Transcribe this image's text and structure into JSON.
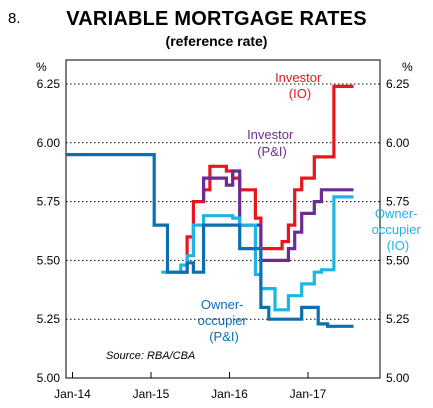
{
  "figure_number": "8.",
  "chart_data": {
    "type": "line",
    "title": "VARIABLE MORTGAGE RATES",
    "subtitle": "(reference rate)",
    "unit_left": "%",
    "unit_right": "%",
    "ylim": [
      5.0,
      6.25
    ],
    "yticks": [
      5.0,
      5.25,
      5.5,
      5.75,
      6.0,
      6.25
    ],
    "ytick_labels": [
      "5.00",
      "5.25",
      "5.50",
      "5.75",
      "6.00",
      "6.25"
    ],
    "xlim": [
      2013.917,
      2017.917
    ],
    "xticks": [
      2014.0,
      2015.0,
      2016.0,
      2017.0
    ],
    "xtick_labels": [
      "Jan-14",
      "Jan-15",
      "Jan-16",
      "Jan-17"
    ],
    "grid": "horizontal dotted",
    "source": "Source: RBA/CBA",
    "series": [
      {
        "name": "Investor (IO)",
        "label_lines": [
          "Investor",
          "(IO)"
        ],
        "color": "#e8141e",
        "x": [
          2015.38,
          2015.46,
          2015.46,
          2015.54,
          2015.54,
          2015.67,
          2015.67,
          2015.75,
          2015.75,
          2015.96,
          2015.96,
          2016.04,
          2016.04,
          2016.13,
          2016.13,
          2016.33,
          2016.33,
          2016.4,
          2016.4,
          2016.58,
          2016.58,
          2016.67,
          2016.67,
          2016.75,
          2016.75,
          2016.83,
          2016.83,
          2016.92,
          2016.92,
          2017.08,
          2017.08,
          2017.17,
          2017.17,
          2017.33,
          2017.33,
          2017.46,
          2017.46,
          2017.58
        ],
        "y": [
          5.45,
          5.45,
          5.6,
          5.6,
          5.75,
          5.75,
          5.8,
          5.8,
          5.9,
          5.9,
          5.88,
          5.88,
          5.85,
          5.85,
          5.8,
          5.8,
          5.68,
          5.68,
          5.55,
          5.55,
          5.55,
          5.55,
          5.58,
          5.58,
          5.65,
          5.65,
          5.8,
          5.8,
          5.85,
          5.85,
          5.94,
          5.94,
          5.94,
          5.94,
          6.24,
          6.24,
          6.24,
          6.24
        ]
      },
      {
        "name": "Investor (P&I)",
        "label_lines": [
          "Investor",
          "(P&I)"
        ],
        "color": "#6b2c91",
        "x": [
          2015.67,
          2015.67,
          2015.96,
          2015.96,
          2016.04,
          2016.04,
          2016.13,
          2016.13,
          2016.4,
          2016.4,
          2016.75,
          2016.75,
          2016.83,
          2016.83,
          2016.92,
          2016.92,
          2017.08,
          2017.08,
          2017.17,
          2017.17,
          2017.58
        ],
        "y": [
          5.75,
          5.85,
          5.85,
          5.82,
          5.82,
          5.88,
          5.88,
          5.65,
          5.65,
          5.5,
          5.5,
          5.55,
          5.55,
          5.62,
          5.62,
          5.7,
          5.7,
          5.75,
          5.75,
          5.8,
          5.8
        ]
      },
      {
        "name": "Owner-occupier (IO)",
        "label_lines": [
          "Owner-",
          "occupier",
          "(IO)"
        ],
        "color": "#1fb4e6",
        "x": [
          2015.13,
          2015.38,
          2015.38,
          2015.46,
          2015.46,
          2015.54,
          2015.54,
          2015.67,
          2015.67,
          2016.04,
          2016.04,
          2016.13,
          2016.13,
          2016.33,
          2016.33,
          2016.4,
          2016.4,
          2016.58,
          2016.58,
          2016.67,
          2016.67,
          2016.75,
          2016.75,
          2016.92,
          2016.92,
          2017.08,
          2017.08,
          2017.17,
          2017.17,
          2017.33,
          2017.33,
          2017.58
        ],
        "y": [
          5.45,
          5.45,
          5.48,
          5.48,
          5.52,
          5.52,
          5.65,
          5.65,
          5.69,
          5.69,
          5.68,
          5.68,
          5.65,
          5.65,
          5.44,
          5.44,
          5.38,
          5.38,
          5.29,
          5.29,
          5.29,
          5.29,
          5.35,
          5.35,
          5.4,
          5.4,
          5.45,
          5.45,
          5.46,
          5.46,
          5.77,
          5.77
        ]
      },
      {
        "name": "Owner-occupier (P&I)",
        "label_lines": [
          "Owner-",
          "occupier",
          "(P&I)"
        ],
        "color": "#0b6fb0",
        "x": [
          2013.917,
          2014.96,
          2014.96,
          2015.04,
          2015.04,
          2015.21,
          2015.21,
          2015.46,
          2015.46,
          2015.54,
          2015.54,
          2015.67,
          2015.67,
          2016.04,
          2016.04,
          2016.13,
          2016.13,
          2016.4,
          2016.4,
          2016.5,
          2016.5,
          2016.92,
          2016.92,
          2017.08,
          2017.08,
          2017.13,
          2017.13,
          2017.25,
          2017.25,
          2017.58
        ],
        "y": [
          5.95,
          5.95,
          5.95,
          5.95,
          5.65,
          5.65,
          5.45,
          5.45,
          5.49,
          5.49,
          5.45,
          5.45,
          5.65,
          5.65,
          5.65,
          5.65,
          5.55,
          5.55,
          5.3,
          5.3,
          5.25,
          5.25,
          5.3,
          5.3,
          5.3,
          5.3,
          5.23,
          5.23,
          5.22,
          5.22
        ]
      }
    ]
  }
}
